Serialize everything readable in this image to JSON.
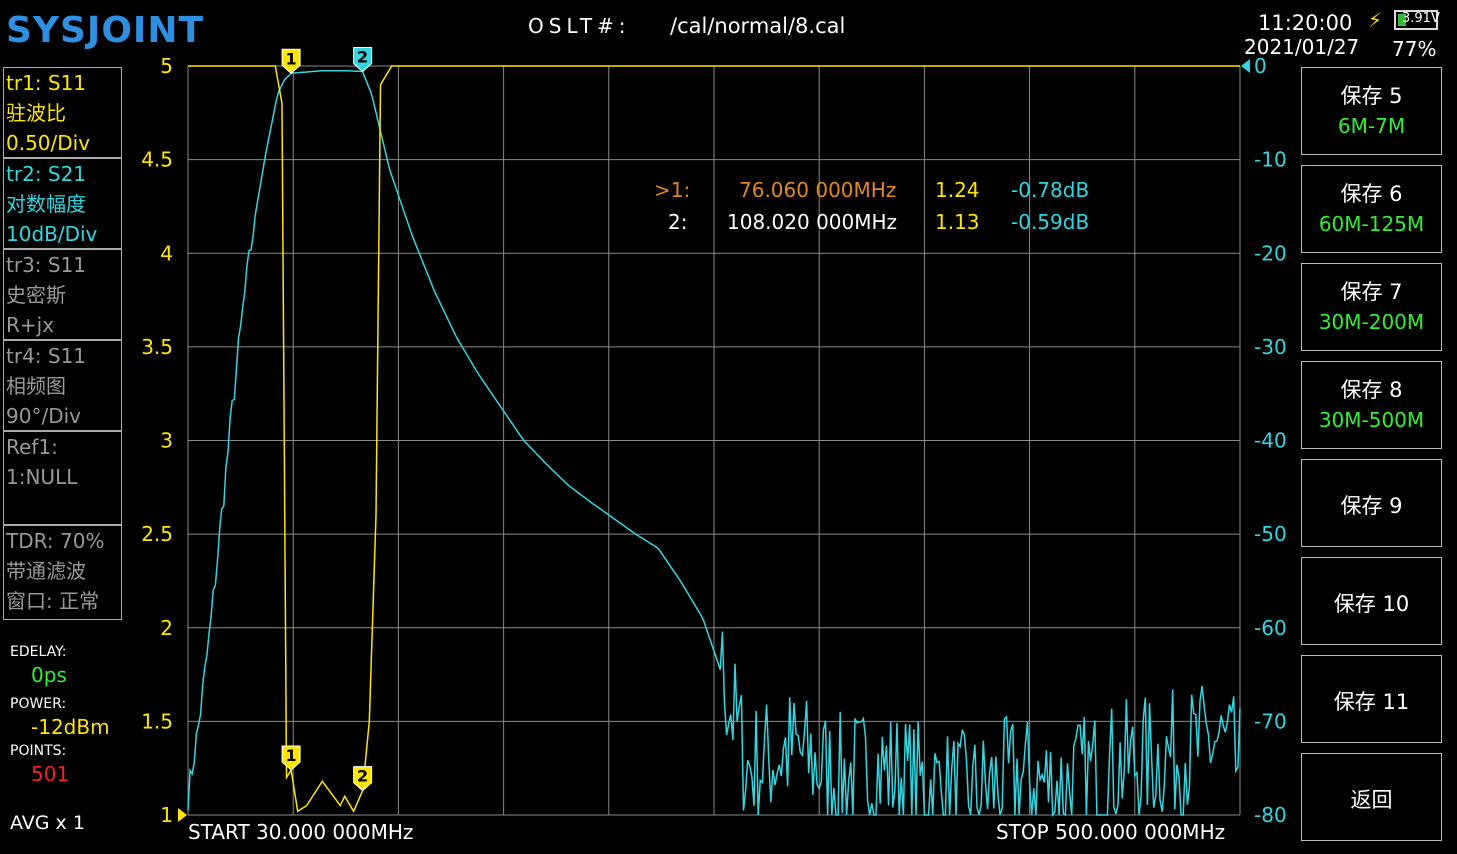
{
  "header": {
    "logo": "SYSJOINT",
    "cal_label": "OSLT#:",
    "cal_file": "/cal/normal/8.cal",
    "time": "11:20:00",
    "date": "2021/01/27",
    "battery_pct": "77%",
    "battery_voltage": "3.91V"
  },
  "traces": [
    {
      "name": "tr1:   S11",
      "format": "驻波比",
      "scale": "0.50/Div",
      "color": "#ffe600",
      "active": true
    },
    {
      "name": "tr2:   S21",
      "format": "对数幅度",
      "scale": "10dB/Div",
      "color": "#33d6e0",
      "active": true
    },
    {
      "name": "tr3:   S11",
      "format": "史密斯",
      "scale": "R+jx",
      "color": "#999999",
      "active": false
    },
    {
      "name": "tr4:   S11",
      "format": "相频图",
      "scale": "90°/Div",
      "color": "#999999",
      "active": false
    }
  ],
  "ref": {
    "line1": "Ref1:",
    "line2": "1:NULL"
  },
  "tdr": {
    "line1": "TDR: 70%",
    "line2": "带通滤波",
    "line3": "窗口: 正常"
  },
  "settings": {
    "edelay_label": "EDELAY:",
    "edelay_value": "0ps",
    "power_label": "POWER:",
    "power_value": "-12dBm",
    "points_label": "POINTS:",
    "points_value": "501",
    "avg": "AVG x 1"
  },
  "markers": [
    {
      "prefix": ">1:",
      "freq": "76.060 000MHz",
      "swr": "1.24",
      "db": "-0.78dB"
    },
    {
      "prefix": "2:",
      "freq": "108.020 000MHz",
      "swr": "1.13",
      "db": "-0.59dB"
    }
  ],
  "sweep": {
    "start": "START   30.000 000MHz",
    "stop": "STOP  500.000 000MHz"
  },
  "buttons": [
    {
      "title": "保存 5",
      "sub": "6M-7M"
    },
    {
      "title": "保存 6",
      "sub": "60M-125M"
    },
    {
      "title": "保存 7",
      "sub": "30M-200M"
    },
    {
      "title": "保存 8",
      "sub": "30M-500M"
    },
    {
      "title": "保存 9",
      "sub": ""
    },
    {
      "title": "保存 10",
      "sub": ""
    },
    {
      "title": "保存 11",
      "sub": ""
    },
    {
      "title": "返回",
      "sub": ""
    }
  ],
  "chart_data": {
    "type": "line",
    "x_range_mhz": [
      30,
      500
    ],
    "y_left": {
      "ticks": [
        "5",
        "4.5",
        "4",
        "3.5",
        "3",
        "2.5",
        "2",
        "1.5",
        "1"
      ],
      "range": [
        1,
        5
      ],
      "color": "#ffe600"
    },
    "y_right": {
      "ticks": [
        "0",
        "-10",
        "-20",
        "-30",
        "-40",
        "-50",
        "-60",
        "-70",
        "-80"
      ],
      "range": [
        -80,
        0
      ],
      "color": "#33d6e0"
    },
    "grid": true,
    "marker_labels": [
      "1",
      "2"
    ],
    "marker_freqs_mhz": [
      76.06,
      108.02
    ],
    "series": [
      {
        "name": "tr1: S11",
        "color": "#ffe600",
        "x": [
          30,
          69,
          72,
          74,
          76.06,
          79,
          83,
          90,
          95,
          98,
          100,
          104,
          108.02,
          111,
          114,
          116,
          121,
          125,
          500
        ],
        "y": [
          5,
          5,
          4.8,
          1.2,
          1.24,
          1.02,
          1.05,
          1.18,
          1.1,
          1.05,
          1.1,
          1.02,
          1.13,
          1.5,
          2.6,
          4.9,
          5,
          5,
          5
        ]
      },
      {
        "name": "tr2: S21",
        "color": "#33d6e0",
        "x": [
          30,
          35,
          40,
          45,
          50,
          55,
          60,
          65,
          70,
          73,
          76.06,
          90,
          100,
          108.02,
          112,
          116,
          120,
          130,
          140,
          150,
          160,
          170,
          180,
          190,
          200,
          210,
          220,
          230,
          240,
          250,
          260,
          270,
          280,
          290,
          300,
          320,
          340,
          360,
          380,
          400,
          420,
          440,
          460,
          480,
          490,
          500
        ],
        "y": [
          -78,
          -70,
          -60,
          -48,
          -36,
          -25,
          -16,
          -9,
          -3,
          -1.5,
          -0.78,
          -0.5,
          -0.5,
          -0.59,
          -3,
          -7,
          -11,
          -18,
          -24,
          -29,
          -33,
          -36.5,
          -40,
          -42.5,
          -44.8,
          -46.6,
          -48.3,
          -50,
          -51.5,
          -55,
          -59,
          -66,
          -75,
          -74,
          -73,
          -76,
          -75,
          -77,
          -78,
          -76,
          -77,
          -75,
          -74,
          -73,
          -72,
          -75
        ]
      }
    ]
  }
}
